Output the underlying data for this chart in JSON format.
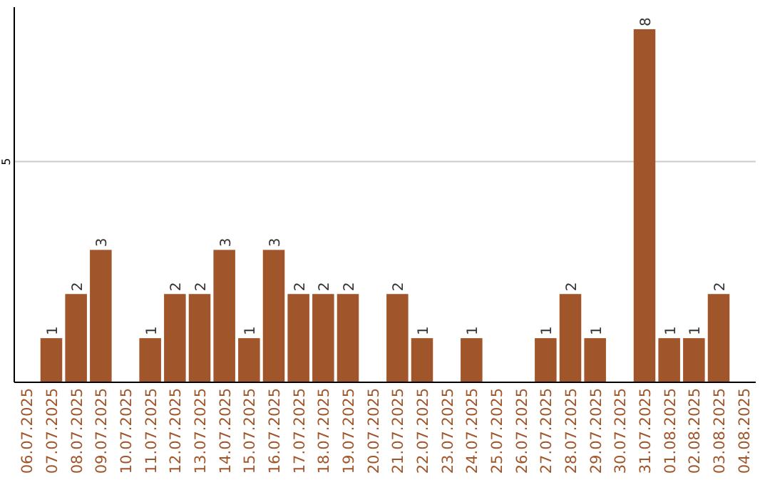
{
  "chart_data": {
    "type": "bar",
    "categories": [
      "06.07.2025",
      "07.07.2025",
      "08.07.2025",
      "09.07.2025",
      "10.07.2025",
      "11.07.2025",
      "12.07.2025",
      "13.07.2025",
      "14.07.2025",
      "15.07.2025",
      "16.07.2025",
      "17.07.2025",
      "18.07.2025",
      "19.07.2025",
      "20.07.2025",
      "21.07.2025",
      "22.07.2025",
      "23.07.2025",
      "24.07.2025",
      "25.07.2025",
      "26.07.2025",
      "27.07.2025",
      "28.07.2025",
      "29.07.2025",
      "30.07.2025",
      "31.07.2025",
      "01.08.2025",
      "02.08.2025",
      "03.08.2025",
      "04.08.2025"
    ],
    "values": [
      0,
      1,
      2,
      3,
      0,
      1,
      2,
      2,
      3,
      1,
      3,
      2,
      2,
      2,
      0,
      2,
      1,
      0,
      1,
      0,
      0,
      1,
      2,
      1,
      0,
      8,
      1,
      1,
      2,
      0
    ],
    "value_labels": [
      null,
      "1",
      "2",
      "3",
      null,
      "1",
      "2",
      "2",
      "3",
      "1",
      "3",
      "2",
      "2",
      "2",
      null,
      "2",
      "1",
      null,
      "1",
      null,
      null,
      "1",
      "2",
      "1",
      null,
      "8",
      "1",
      "1",
      "2",
      null
    ],
    "color": "#a0562a",
    "ylim": [
      0,
      8.5
    ],
    "yticks": [
      5
    ],
    "grid": "y"
  }
}
